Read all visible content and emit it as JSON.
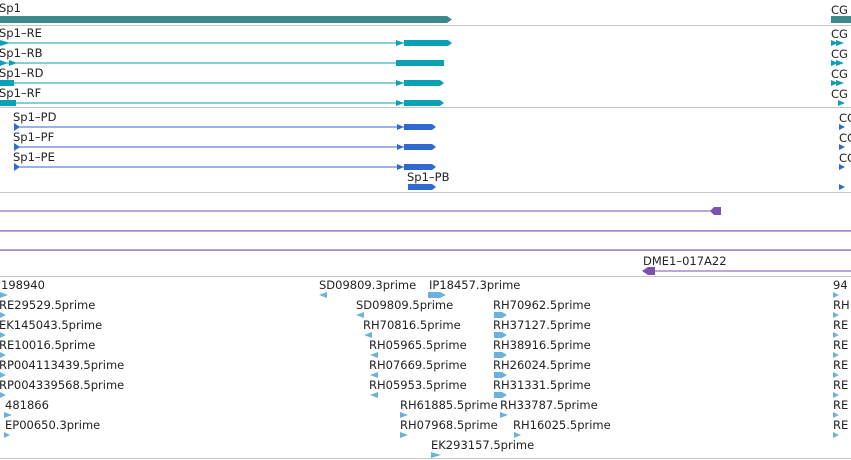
{
  "gene": {
    "name": "Sp1",
    "right_clip_label": "CG",
    "color": "#3a8a8c"
  },
  "transcripts_a": {
    "color": "#0aa1b6",
    "items": [
      {
        "name": "Sp1–RE",
        "right_clip_label": "CG"
      },
      {
        "name": "Sp1–RB",
        "right_clip_label": "CG"
      },
      {
        "name": "Sp1–RD",
        "right_clip_label": "CG"
      },
      {
        "name": "Sp1–RF",
        "right_clip_label": "CG"
      }
    ]
  },
  "transcripts_b": {
    "color": "#2e6ad0",
    "items": [
      {
        "name": "Sp1–PD",
        "right_clip_label": "CG"
      },
      {
        "name": "Sp1–PF",
        "right_clip_label": "CG"
      },
      {
        "name": "Sp1–PE",
        "right_clip_label": "CG"
      },
      {
        "name": "Sp1–PB",
        "right_clip_label": ""
      }
    ]
  },
  "clone_feature": {
    "label": "DME1–017A22",
    "color": "#7a52b0"
  },
  "est_reads": {
    "color": "#6ab2dc",
    "labels": [
      "198940",
      "SD09809.3prime",
      "IP18457.3prime",
      "94",
      "RE29529.5prime",
      "SD09809.5prime",
      "RH70962.5prime",
      "RH",
      "EK145043.5prime",
      "RH70816.5prime",
      "RH37127.5prime",
      "RE",
      "RE10016.5prime",
      "RH05965.5prime",
      "RH38916.5prime",
      "RE",
      "RP004113439.5prime",
      "RH07669.5prime",
      "RH26024.5prime",
      "RE",
      "RP004339568.5prime",
      "RH05953.5prime",
      "RH31331.5prime",
      "RE",
      "481866",
      "RH61885.5prime",
      "RH33787.5prime",
      "RE",
      "EP00650.3prime",
      "RH07968.5prime",
      "RH16025.5prime",
      "RE",
      "EK293157.5prime"
    ]
  }
}
